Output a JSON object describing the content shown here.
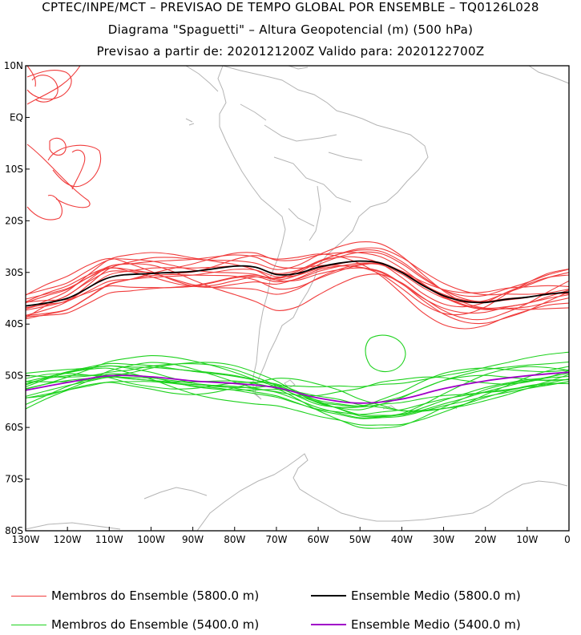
{
  "header": {
    "line1": "CPTEC/INPE/MCT – PREVISAO DE TEMPO GLOBAL POR ENSEMBLE – TQ0126L028",
    "line2": "Diagrama \"Spaguetti\" – Altura Geopotencial (m) (500 hPa)",
    "line3": "Previsao a partir de: 2020121200Z  Valido para: 2020122700Z"
  },
  "chart_data": {
    "type": "line",
    "title": "Diagrama Spaguetti - Altura Geopotencial (m) (500 hPa)",
    "x_axis": {
      "range": [
        -130,
        0
      ],
      "ticks": [
        -130,
        -120,
        -110,
        -100,
        -90,
        -80,
        -70,
        -60,
        -50,
        -40,
        -30,
        -20,
        -10,
        0
      ],
      "tick_labels": [
        "130W",
        "120W",
        "110W",
        "100W",
        "90W",
        "80W",
        "70W",
        "60W",
        "50W",
        "40W",
        "30W",
        "20W",
        "10W",
        "0"
      ]
    },
    "y_axis": {
      "range": [
        -80,
        10
      ],
      "ticks": [
        10,
        0,
        -10,
        -20,
        -30,
        -40,
        -50,
        -60,
        -70,
        -80
      ],
      "tick_labels": [
        "10N",
        "EQ",
        "10S",
        "20S",
        "30S",
        "40S",
        "50S",
        "60S",
        "70S",
        "80S"
      ]
    },
    "series": [
      {
        "name": "Ensemble Medio (5800.0 m)",
        "color": "#000000",
        "lon": [
          -130,
          -120,
          -110,
          -100,
          -90,
          -80,
          -75,
          -70,
          -65,
          -60,
          -55,
          -50,
          -45,
          -40,
          -35,
          -30,
          -25,
          -20,
          -15,
          -10,
          -5,
          0
        ],
        "lat": [
          -36.5,
          -35,
          -31,
          -30.2,
          -29.8,
          -28.8,
          -29,
          -30.4,
          -30.2,
          -29,
          -28.2,
          -27.8,
          -28.2,
          -30,
          -32.5,
          -34.5,
          -35.6,
          -35.8,
          -35.2,
          -34.8,
          -34.2,
          -33.8
        ]
      },
      {
        "name": "Ensemble Medio (5400.0 m)",
        "color": "#a000c8",
        "lon": [
          -130,
          -120,
          -110,
          -100,
          -90,
          -80,
          -70,
          -60,
          -50,
          -40,
          -30,
          -20,
          -10,
          0
        ],
        "lat": [
          -52.8,
          -51.3,
          -50,
          -50.2,
          -51,
          -51.5,
          -52.3,
          -54.3,
          -55.3,
          -54.5,
          -52.5,
          -51,
          -50,
          -49.3
        ]
      }
    ],
    "ensemble_members": {
      "5800": {
        "name": "Membros do Ensemble (5800.0 m)",
        "color": "#f03c3c",
        "count": 15
      },
      "5400": {
        "name": "Membros do Ensemble (5400.0 m)",
        "color": "#1ed21e",
        "count": 15
      }
    }
  },
  "legend": {
    "members_5800": "Membros do Ensemble (5800.0 m)",
    "mean_5800": "Ensemble Medio (5800.0 m)",
    "members_5400": "Membros do Ensemble (5400.0 m)",
    "mean_5400": "Ensemble Medio (5400.0 m)"
  }
}
